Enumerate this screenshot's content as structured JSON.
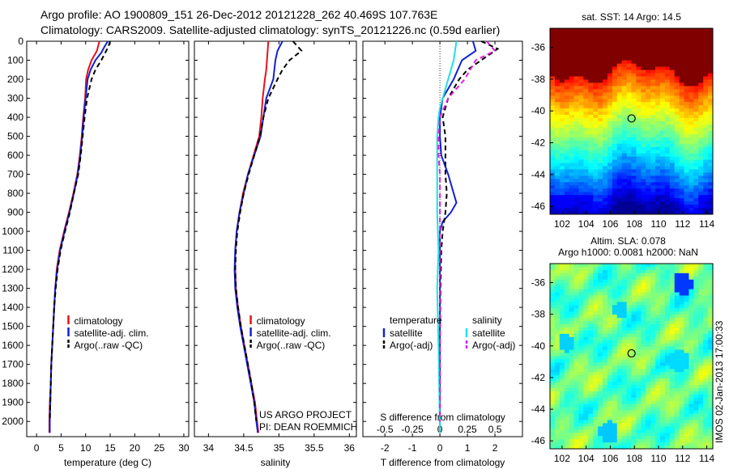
{
  "header": {
    "line1": "Argo profile: AO 1900809_151 26-Dec-2012 20121228_262 40.469S 107.763E",
    "line2": "Climatology: CARS2009. Satellite-adjusted climatology: synTS_20121226.nc (0.59d earlier)"
  },
  "footer_label": "IMOS 02-Jan-2013 17:00:33",
  "colors": {
    "climatology": "#e8111b",
    "satellite": "#1320d4",
    "argo": "#000000",
    "salinity_satellite": "#22e0e0",
    "salinity_argo": "#e020e0",
    "sst_hot": "#a00000",
    "sst_cold": "#081a90",
    "sla_mid": "#2ecc3a"
  },
  "chart_data": [
    {
      "type": "line",
      "xlabel": "temperature (deg C)",
      "xlim": [
        -2,
        31
      ],
      "xticks": [
        0,
        5,
        10,
        15,
        20,
        25,
        30
      ],
      "ylim": [
        2080,
        0
      ],
      "yticks": [
        0,
        100,
        200,
        300,
        400,
        500,
        600,
        700,
        800,
        900,
        1000,
        1100,
        1200,
        1300,
        1400,
        1500,
        1600,
        1700,
        1800,
        1900,
        2000
      ],
      "legend": [
        "climatology",
        "satellite-adj. clim.",
        "Argo(..raw -QC)"
      ],
      "series": [
        {
          "name": "climatology",
          "color": "#e8111b",
          "style": "solid",
          "points": [
            [
              12.8,
              0
            ],
            [
              12.3,
              50
            ],
            [
              11.2,
              100
            ],
            [
              10.5,
              150
            ],
            [
              10.1,
              200
            ],
            [
              9.9,
              300
            ],
            [
              9.5,
              400
            ],
            [
              9.2,
              500
            ],
            [
              8.8,
              600
            ],
            [
              8.3,
              700
            ],
            [
              7.5,
              800
            ],
            [
              6.6,
              900
            ],
            [
              5.6,
              1000
            ],
            [
              4.7,
              1100
            ],
            [
              4.1,
              1200
            ],
            [
              3.8,
              1300
            ],
            [
              3.6,
              1400
            ],
            [
              3.4,
              1500
            ],
            [
              3.2,
              1600
            ],
            [
              3.0,
              1700
            ],
            [
              2.9,
              1800
            ],
            [
              2.7,
              1900
            ],
            [
              2.6,
              2000
            ],
            [
              2.6,
              2060
            ]
          ]
        },
        {
          "name": "satellite-adj. clim.",
          "color": "#1320d4",
          "style": "solid",
          "points": [
            [
              14.5,
              0
            ],
            [
              13.8,
              30
            ],
            [
              13.2,
              60
            ],
            [
              12.0,
              100
            ],
            [
              11.0,
              150
            ],
            [
              10.4,
              200
            ],
            [
              10.0,
              300
            ],
            [
              9.6,
              400
            ],
            [
              9.3,
              500
            ],
            [
              8.9,
              600
            ],
            [
              8.4,
              700
            ],
            [
              7.6,
              800
            ],
            [
              6.7,
              900
            ],
            [
              5.7,
              1000
            ],
            [
              4.8,
              1100
            ],
            [
              4.2,
              1200
            ],
            [
              3.8,
              1300
            ],
            [
              3.6,
              1400
            ],
            [
              3.4,
              1500
            ],
            [
              3.2,
              1600
            ],
            [
              3.0,
              1700
            ],
            [
              2.9,
              1800
            ],
            [
              2.8,
              1900
            ],
            [
              2.7,
              2000
            ],
            [
              2.7,
              2060
            ]
          ]
        },
        {
          "name": "Argo(..raw -QC)",
          "color": "#000000",
          "style": "dashed",
          "points": [
            [
              15.0,
              0
            ],
            [
              14.6,
              30
            ],
            [
              14.0,
              60
            ],
            [
              13.2,
              100
            ],
            [
              12.0,
              150
            ],
            [
              11.2,
              200
            ],
            [
              10.3,
              300
            ],
            [
              9.8,
              400
            ],
            [
              9.4,
              500
            ],
            [
              9.0,
              600
            ],
            [
              8.5,
              700
            ],
            [
              7.6,
              800
            ],
            [
              6.8,
              900
            ],
            [
              5.8,
              1000
            ],
            [
              4.9,
              1100
            ],
            [
              4.3,
              1200
            ],
            [
              3.9,
              1300
            ],
            [
              3.6,
              1400
            ],
            [
              3.4,
              1500
            ],
            [
              3.2,
              1600
            ],
            [
              3.0,
              1700
            ],
            [
              2.9,
              1800
            ],
            [
              2.8,
              1900
            ],
            [
              2.7,
              2000
            ]
          ]
        }
      ]
    },
    {
      "type": "line",
      "xlabel": "salinity",
      "xlim": [
        33.8,
        36.1
      ],
      "xticks": [
        34,
        34.5,
        35,
        35.5,
        36
      ],
      "ylim": [
        2080,
        0
      ],
      "legend": [
        "climatology",
        "satellite-adj. clim.",
        "Argo(..raw -QC)"
      ],
      "annotations": [
        "US ARGO PROJECT",
        "PI: DEAN ROEMMICH"
      ],
      "series": [
        {
          "name": "climatology",
          "color": "#e8111b",
          "style": "solid",
          "points": [
            [
              34.85,
              0
            ],
            [
              34.84,
              50
            ],
            [
              34.83,
              100
            ],
            [
              34.82,
              150
            ],
            [
              34.8,
              200
            ],
            [
              34.77,
              300
            ],
            [
              34.75,
              400
            ],
            [
              34.72,
              500
            ],
            [
              34.64,
              600
            ],
            [
              34.56,
              700
            ],
            [
              34.49,
              800
            ],
            [
              34.44,
              900
            ],
            [
              34.4,
              1000
            ],
            [
              34.38,
              1100
            ],
            [
              34.38,
              1200
            ],
            [
              34.39,
              1300
            ],
            [
              34.42,
              1400
            ],
            [
              34.46,
              1500
            ],
            [
              34.51,
              1600
            ],
            [
              34.56,
              1700
            ],
            [
              34.61,
              1800
            ],
            [
              34.66,
              1900
            ],
            [
              34.69,
              2000
            ],
            [
              34.71,
              2060
            ]
          ]
        },
        {
          "name": "satellite-adj. clim.",
          "color": "#1320d4",
          "style": "solid",
          "points": [
            [
              35.05,
              0
            ],
            [
              34.98,
              50
            ],
            [
              34.95,
              100
            ],
            [
              34.92,
              200
            ],
            [
              34.82,
              300
            ],
            [
              34.78,
              400
            ],
            [
              34.74,
              500
            ],
            [
              34.65,
              600
            ],
            [
              34.56,
              700
            ],
            [
              34.5,
              800
            ],
            [
              34.44,
              900
            ],
            [
              34.4,
              1000
            ],
            [
              34.38,
              1100
            ],
            [
              34.37,
              1200
            ],
            [
              34.38,
              1300
            ],
            [
              34.41,
              1400
            ],
            [
              34.45,
              1500
            ],
            [
              34.5,
              1600
            ],
            [
              34.55,
              1700
            ],
            [
              34.6,
              1800
            ],
            [
              34.65,
              1900
            ],
            [
              34.68,
              2000
            ],
            [
              34.7,
              2060
            ]
          ]
        },
        {
          "name": "Argo(..raw -QC)",
          "color": "#000000",
          "style": "dashed",
          "points": [
            [
              35.2,
              0
            ],
            [
              35.32,
              50
            ],
            [
              35.15,
              100
            ],
            [
              35.05,
              150
            ],
            [
              34.98,
              200
            ],
            [
              34.85,
              300
            ],
            [
              34.78,
              400
            ],
            [
              34.73,
              500
            ],
            [
              34.65,
              600
            ],
            [
              34.57,
              700
            ],
            [
              34.5,
              800
            ],
            [
              34.45,
              900
            ],
            [
              34.41,
              1000
            ],
            [
              34.39,
              1100
            ],
            [
              34.38,
              1200
            ],
            [
              34.39,
              1300
            ],
            [
              34.42,
              1400
            ],
            [
              34.46,
              1500
            ],
            [
              34.51,
              1600
            ],
            [
              34.56,
              1700
            ],
            [
              34.61,
              1800
            ],
            [
              34.65,
              1900
            ],
            [
              34.68,
              2000
            ]
          ]
        }
      ]
    },
    {
      "type": "line",
      "xlabel": "T difference from climatology",
      "xlim": [
        -2.8,
        3.0
      ],
      "xticks": [
        -2,
        -1,
        0,
        1,
        2
      ],
      "xlabel_top": "S difference from climatology",
      "xticks_top": [
        "-0.5",
        "-0.25",
        "0",
        "0.25",
        "0.5"
      ],
      "ylim": [
        2080,
        0
      ],
      "legend_groups": [
        {
          "title": "temperature",
          "items": [
            "satellite",
            "Argo(-adj)"
          ]
        },
        {
          "title": "salinity",
          "items": [
            "satellite",
            "Argo(-adj)"
          ]
        }
      ],
      "series": [
        {
          "name": "satellite",
          "group": "temperature",
          "color": "#1320d4",
          "style": "solid",
          "points": [
            [
              1.2,
              0
            ],
            [
              1.3,
              50
            ],
            [
              0.8,
              100
            ],
            [
              0.5,
              200
            ],
            [
              0.1,
              300
            ],
            [
              0.0,
              400
            ],
            [
              0.0,
              500
            ],
            [
              0.05,
              600
            ],
            [
              0.3,
              700
            ],
            [
              0.5,
              800
            ],
            [
              0.6,
              850
            ],
            [
              0.4,
              900
            ],
            [
              0.1,
              950
            ],
            [
              0.0,
              1000
            ],
            [
              0.0,
              1200
            ],
            [
              0.0,
              1600
            ],
            [
              0.0,
              2060
            ]
          ]
        },
        {
          "name": "Argo(-adj)",
          "group": "temperature",
          "color": "#000000",
          "style": "dashed",
          "points": [
            [
              1.5,
              0
            ],
            [
              2.1,
              40
            ],
            [
              1.6,
              90
            ],
            [
              1.0,
              150
            ],
            [
              0.7,
              200
            ],
            [
              0.3,
              300
            ],
            [
              0.1,
              400
            ],
            [
              0.2,
              500
            ],
            [
              0.2,
              600
            ],
            [
              0.2,
              700
            ],
            [
              0.25,
              800
            ],
            [
              0.2,
              900
            ],
            [
              0.1,
              1000
            ],
            [
              0.05,
              1100
            ],
            [
              0.02,
              1300
            ],
            [
              0.0,
              1600
            ],
            [
              0.0,
              2000
            ]
          ]
        },
        {
          "name": "satellite",
          "group": "salinity",
          "color": "#22e0e0",
          "style": "solid",
          "points": [
            [
              0.6,
              0
            ],
            [
              0.55,
              50
            ],
            [
              0.5,
              100
            ],
            [
              0.4,
              150
            ],
            [
              0.2,
              250
            ],
            [
              0.0,
              350
            ],
            [
              -0.05,
              400
            ],
            [
              -0.1,
              500
            ],
            [
              -0.1,
              700
            ],
            [
              -0.1,
              900
            ],
            [
              -0.05,
              1100
            ],
            [
              -0.1,
              1300
            ],
            [
              -0.05,
              1600
            ],
            [
              0.0,
              2060
            ]
          ]
        },
        {
          "name": "Argo(-adj)",
          "group": "salinity",
          "color": "#e020e0",
          "style": "dashed",
          "points": [
            [
              1.7,
              0
            ],
            [
              2.0,
              50
            ],
            [
              1.3,
              100
            ],
            [
              0.9,
              200
            ],
            [
              0.3,
              300
            ],
            [
              0.0,
              400
            ],
            [
              -0.05,
              500
            ],
            [
              -0.05,
              600
            ],
            [
              0.0,
              700
            ],
            [
              0.0,
              900
            ],
            [
              0.0,
              1200
            ],
            [
              0.0,
              1600
            ],
            [
              0.0,
              2000
            ]
          ]
        }
      ]
    },
    {
      "type": "heatmap",
      "title": "sat. SST: 14  Argo: 14.5",
      "xticks": [
        102,
        104,
        106,
        108,
        110,
        112,
        114
      ],
      "yticks": [
        -36,
        -38,
        -40,
        -42,
        -44,
        -46
      ],
      "xlim": [
        101,
        114.5
      ],
      "ylim": [
        -46.5,
        -34.8
      ],
      "marker": [
        107.763,
        -40.469
      ]
    },
    {
      "type": "heatmap",
      "title_lines": [
        "Altim. SLA: 0.078",
        "Argo h1000: 0.0081 h2000: NaN"
      ],
      "xticks": [
        102,
        104,
        106,
        108,
        110,
        112,
        114
      ],
      "yticks": [
        -36,
        -38,
        -40,
        -42,
        -44,
        -46
      ],
      "xlim": [
        101,
        114.5
      ],
      "ylim": [
        -46.5,
        -34.8
      ],
      "marker": [
        107.763,
        -40.469
      ]
    }
  ]
}
